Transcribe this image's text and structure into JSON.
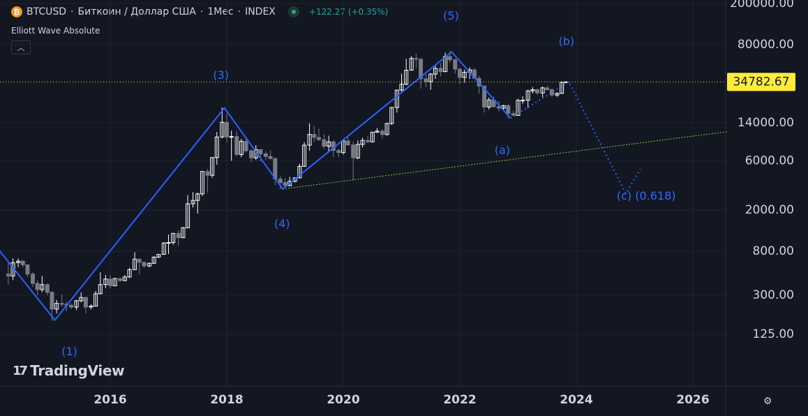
{
  "header": {
    "symbol": "BTCUSD",
    "name": "Биткоин / Доллар США",
    "interval": "1Мес",
    "exchange": "INDEX",
    "change": "+122.27 (+0.35%)"
  },
  "indicator_name": "Elliott Wave Absolute",
  "branding": "TradingView",
  "icons": {
    "logo": "bitcoin-logo-icon",
    "collapse": "chevron-up-icon",
    "settings": "gear-icon",
    "status": "market-open-dot-icon"
  },
  "colors": {
    "background": "#131722",
    "wave": "#2962ff",
    "label": "#2f6bff",
    "trendline": "#8bc34a",
    "candle_up": "#ffffff",
    "candle_down": "#787b86",
    "price_badge": "#ffeb3b"
  },
  "chart_data": {
    "type": "candlestick",
    "scale": "log",
    "ylim": [
      75,
      200000
    ],
    "xlim": [
      "2014-04",
      "2027-06"
    ],
    "y_ticks": [
      200000,
      80000,
      14000,
      6000,
      2000,
      800,
      300,
      125
    ],
    "y_tick_labels": [
      "200000.00",
      "80000.00",
      "14000.00",
      "6000.00",
      "2000.00",
      "800.00",
      "300.00",
      "125.00"
    ],
    "x_ticks": [
      2016,
      2018,
      2020,
      2022,
      2024,
      2026
    ],
    "x_tick_labels": [
      "2016",
      "2018",
      "2020",
      "2022",
      "2024",
      "2026"
    ],
    "current_price": 34782.67,
    "current_price_label": "34782.67",
    "wave_path": [
      {
        "t": 2014.0,
        "y": 950
      },
      {
        "t": 2015.05,
        "y": 172
      },
      {
        "t": 2017.96,
        "y": 19500
      },
      {
        "t": 2018.96,
        "y": 3200
      },
      {
        "t": 2021.86,
        "y": 68000
      },
      {
        "t": 2022.87,
        "y": 15500
      }
    ],
    "wave_projection": [
      {
        "t": 2022.87,
        "y": 15500
      },
      {
        "t": 2023.87,
        "y": 35000
      },
      {
        "t": 2024.85,
        "y": 2900
      },
      {
        "t": 2025.1,
        "y": 5000
      }
    ],
    "trendline": [
      {
        "t": 2018.96,
        "y": 3200
      },
      {
        "t": 2026.6,
        "y": 11500
      }
    ],
    "wave_labels": [
      {
        "text": "(1)",
        "t": 2015.3,
        "y": 84
      },
      {
        "text": "(3)",
        "t": 2017.9,
        "y": 40000
      },
      {
        "text": "(4)",
        "t": 2018.95,
        "y": 1450
      },
      {
        "text": "(5)",
        "t": 2021.85,
        "y": 150000
      },
      {
        "text": "(a)",
        "t": 2022.73,
        "y": 7500
      },
      {
        "text": "(b)",
        "t": 2023.83,
        "y": 85000
      },
      {
        "text": "(c) (0.618)",
        "t": 2025.2,
        "y": 2700
      }
    ],
    "candles": [
      [
        2014.25,
        480,
        460,
        640,
        380
      ],
      [
        2014.33,
        460,
        620,
        680,
        420
      ],
      [
        2014.42,
        620,
        640,
        680,
        560
      ],
      [
        2014.5,
        640,
        590,
        660,
        560
      ],
      [
        2014.58,
        590,
        480,
        600,
        450
      ],
      [
        2014.67,
        480,
        390,
        500,
        360
      ],
      [
        2014.75,
        390,
        340,
        420,
        300
      ],
      [
        2014.83,
        340,
        380,
        460,
        320
      ],
      [
        2014.92,
        380,
        320,
        390,
        300
      ],
      [
        2015.0,
        320,
        220,
        330,
        170
      ],
      [
        2015.08,
        220,
        250,
        270,
        200
      ],
      [
        2015.17,
        250,
        245,
        305,
        230
      ],
      [
        2015.25,
        245,
        240,
        260,
        210
      ],
      [
        2015.33,
        240,
        230,
        250,
        220
      ],
      [
        2015.42,
        230,
        265,
        270,
        215
      ],
      [
        2015.5,
        265,
        285,
        320,
        255
      ],
      [
        2015.58,
        285,
        230,
        290,
        200
      ],
      [
        2015.67,
        230,
        235,
        245,
        220
      ],
      [
        2015.75,
        235,
        310,
        330,
        235
      ],
      [
        2015.83,
        310,
        380,
        500,
        305
      ],
      [
        2015.92,
        380,
        430,
        470,
        350
      ],
      [
        2016.0,
        430,
        370,
        470,
        350
      ],
      [
        2016.08,
        370,
        435,
        440,
        370
      ],
      [
        2016.17,
        435,
        415,
        440,
        400
      ],
      [
        2016.25,
        415,
        450,
        470,
        410
      ],
      [
        2016.33,
        450,
        530,
        550,
        440
      ],
      [
        2016.42,
        530,
        670,
        780,
        530
      ],
      [
        2016.5,
        670,
        625,
        680,
        480
      ],
      [
        2016.58,
        625,
        575,
        625,
        555
      ],
      [
        2016.67,
        575,
        610,
        620,
        560
      ],
      [
        2016.75,
        610,
        700,
        720,
        600
      ],
      [
        2016.83,
        700,
        745,
        750,
        690
      ],
      [
        2016.92,
        745,
        960,
        980,
        740
      ],
      [
        2017.0,
        960,
        970,
        1160,
        750
      ],
      [
        2017.08,
        970,
        1190,
        1200,
        920
      ],
      [
        2017.17,
        1190,
        1080,
        1280,
        900
      ],
      [
        2017.25,
        1080,
        1350,
        1370,
        1080
      ],
      [
        2017.33,
        1350,
        2300,
        2800,
        1340
      ],
      [
        2017.42,
        2300,
        2480,
        2980,
        2120
      ],
      [
        2017.5,
        2480,
        2870,
        2950,
        1850
      ],
      [
        2017.58,
        2870,
        4730,
        4780,
        2730
      ],
      [
        2017.67,
        4730,
        4340,
        5000,
        2950
      ],
      [
        2017.75,
        4340,
        6450,
        6480,
        4120
      ],
      [
        2017.83,
        6450,
        10200,
        11400,
        5500
      ],
      [
        2017.92,
        10200,
        14150,
        19700,
        9900
      ],
      [
        2018.0,
        14150,
        10200,
        17200,
        9000
      ],
      [
        2018.08,
        10200,
        10300,
        11800,
        6000
      ],
      [
        2018.17,
        10300,
        6900,
        11700,
        6600
      ],
      [
        2018.25,
        6900,
        9250,
        9800,
        6500
      ],
      [
        2018.33,
        9250,
        7500,
        10000,
        7200
      ],
      [
        2018.42,
        7500,
        6400,
        7800,
        5800
      ],
      [
        2018.5,
        6400,
        7700,
        8500,
        6100
      ],
      [
        2018.58,
        7700,
        7000,
        7800,
        5900
      ],
      [
        2018.67,
        7000,
        6600,
        7400,
        6100
      ],
      [
        2018.75,
        6600,
        6300,
        7600,
        6200
      ],
      [
        2018.83,
        6300,
        4000,
        6500,
        3500
      ],
      [
        2018.92,
        4000,
        3700,
        4300,
        3200
      ],
      [
        2019.0,
        3700,
        3450,
        4100,
        3350
      ],
      [
        2019.08,
        3450,
        3800,
        4200,
        3400
      ],
      [
        2019.17,
        3800,
        4100,
        4150,
        3700
      ],
      [
        2019.25,
        4100,
        5300,
        5600,
        4100
      ],
      [
        2019.33,
        5300,
        8500,
        9100,
        5300
      ],
      [
        2019.42,
        8500,
        10800,
        13800,
        7500
      ],
      [
        2019.5,
        10800,
        10100,
        13100,
        9100
      ],
      [
        2019.58,
        10100,
        9600,
        12300,
        9300
      ],
      [
        2019.67,
        9600,
        8300,
        10900,
        7800
      ],
      [
        2019.75,
        8300,
        9150,
        10500,
        7300
      ],
      [
        2019.83,
        9150,
        7550,
        9500,
        6500
      ],
      [
        2019.92,
        7550,
        7200,
        7800,
        6500
      ],
      [
        2020.0,
        7200,
        9350,
        9600,
        6900
      ],
      [
        2020.08,
        9350,
        8550,
        10500,
        8400
      ],
      [
        2020.17,
        8550,
        6400,
        9200,
        3900
      ],
      [
        2020.25,
        6400,
        8650,
        9450,
        6200
      ],
      [
        2020.33,
        8650,
        9450,
        10050,
        8100
      ],
      [
        2020.42,
        9450,
        9150,
        10400,
        8900
      ],
      [
        2020.5,
        9150,
        11350,
        11400,
        9000
      ],
      [
        2020.58,
        11350,
        11650,
        12450,
        11150
      ],
      [
        2020.67,
        11650,
        10780,
        12100,
        9900
      ],
      [
        2020.75,
        10780,
        13800,
        14000,
        10500
      ],
      [
        2020.83,
        13800,
        19700,
        19900,
        13300
      ],
      [
        2020.92,
        19700,
        29000,
        29300,
        17600
      ],
      [
        2021.0,
        29000,
        33100,
        41900,
        28200
      ],
      [
        2021.08,
        33100,
        45200,
        58300,
        32300
      ],
      [
        2021.17,
        45200,
        58800,
        61800,
        45000
      ],
      [
        2021.25,
        58800,
        57700,
        65000,
        47100
      ],
      [
        2021.33,
        57700,
        37300,
        59600,
        30000
      ],
      [
        2021.42,
        37300,
        35000,
        41300,
        31000
      ],
      [
        2021.5,
        35000,
        41500,
        42300,
        29300
      ],
      [
        2021.58,
        41500,
        47100,
        50500,
        37300
      ],
      [
        2021.67,
        47100,
        43800,
        52900,
        39600
      ],
      [
        2021.75,
        43800,
        61300,
        66900,
        43300
      ],
      [
        2021.83,
        61300,
        57000,
        69000,
        53300
      ],
      [
        2021.92,
        57000,
        46300,
        59100,
        42000
      ],
      [
        2022.0,
        46300,
        38500,
        47900,
        33000
      ],
      [
        2022.08,
        38500,
        43200,
        45800,
        34300
      ],
      [
        2022.17,
        43200,
        45500,
        48200,
        37200
      ],
      [
        2022.25,
        45500,
        37700,
        47400,
        37600
      ],
      [
        2022.33,
        37700,
        31800,
        39800,
        26700
      ],
      [
        2022.42,
        31800,
        19900,
        31900,
        17600
      ],
      [
        2022.5,
        19900,
        23300,
        24600,
        18800
      ],
      [
        2022.58,
        23300,
        20050,
        25200,
        19600
      ],
      [
        2022.67,
        20050,
        19400,
        22800,
        18100
      ],
      [
        2022.75,
        19400,
        20500,
        20900,
        18200
      ],
      [
        2022.83,
        20500,
        17200,
        21400,
        15500
      ],
      [
        2022.92,
        17200,
        16500,
        18400,
        16300
      ],
      [
        2023.0,
        16500,
        23100,
        23950,
        16500
      ],
      [
        2023.08,
        23100,
        23150,
        25250,
        21400
      ],
      [
        2023.17,
        23150,
        28500,
        29200,
        19550
      ],
      [
        2023.25,
        28500,
        29250,
        31000,
        26900
      ],
      [
        2023.33,
        29250,
        27200,
        30100,
        26000
      ],
      [
        2023.42,
        27200,
        30500,
        31400,
        24800
      ],
      [
        2023.5,
        30500,
        29250,
        31800,
        28900
      ],
      [
        2023.58,
        29250,
        25950,
        30150,
        25100
      ],
      [
        2023.67,
        25950,
        27000,
        27500,
        24900
      ],
      [
        2023.75,
        27000,
        34500,
        35200,
        26600
      ],
      [
        2023.83,
        34500,
        34783,
        35300,
        34000
      ]
    ]
  }
}
